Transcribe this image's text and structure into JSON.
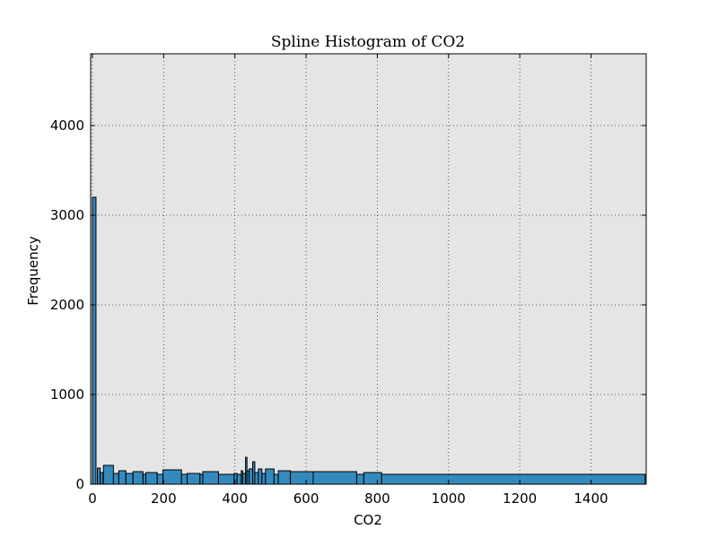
{
  "chart_data": {
    "type": "bar",
    "title": "Spline Histogram of CO2",
    "xlabel": "CO2",
    "ylabel": "Frequency",
    "xlim": [
      -5,
      1555
    ],
    "ylim": [
      0,
      4800
    ],
    "xticks": [
      0,
      200,
      400,
      600,
      800,
      1000,
      1200,
      1400
    ],
    "yticks": [
      0,
      1000,
      2000,
      3000,
      4000
    ],
    "grid": true,
    "colors": {
      "bar": "#348ABD",
      "background": "#E5E5E5",
      "edge": "#000000",
      "grid": "#333333"
    },
    "bins": [
      {
        "x0": 0,
        "x1": 10,
        "value": 3200
      },
      {
        "x0": 14,
        "x1": 22,
        "value": 180
      },
      {
        "x0": 22,
        "x1": 30,
        "value": 130
      },
      {
        "x0": 31,
        "x1": 59,
        "value": 210
      },
      {
        "x0": 59,
        "x1": 74,
        "value": 120
      },
      {
        "x0": 74,
        "x1": 94,
        "value": 150
      },
      {
        "x0": 94,
        "x1": 114,
        "value": 120
      },
      {
        "x0": 114,
        "x1": 142,
        "value": 140
      },
      {
        "x0": 142,
        "x1": 150,
        "value": 110
      },
      {
        "x0": 150,
        "x1": 182,
        "value": 130
      },
      {
        "x0": 182,
        "x1": 198,
        "value": 110
      },
      {
        "x0": 198,
        "x1": 250,
        "value": 160
      },
      {
        "x0": 250,
        "x1": 266,
        "value": 110
      },
      {
        "x0": 266,
        "x1": 302,
        "value": 120
      },
      {
        "x0": 302,
        "x1": 310,
        "value": 110
      },
      {
        "x0": 310,
        "x1": 354,
        "value": 140
      },
      {
        "x0": 354,
        "x1": 398,
        "value": 110
      },
      {
        "x0": 398,
        "x1": 406,
        "value": 120
      },
      {
        "x0": 406,
        "x1": 418,
        "value": 110
      },
      {
        "x0": 418,
        "x1": 422,
        "value": 150
      },
      {
        "x0": 422,
        "x1": 430,
        "value": 120
      },
      {
        "x0": 430,
        "x1": 434,
        "value": 300
      },
      {
        "x0": 434,
        "x1": 440,
        "value": 150
      },
      {
        "x0": 440,
        "x1": 450,
        "value": 170
      },
      {
        "x0": 450,
        "x1": 456,
        "value": 250
      },
      {
        "x0": 456,
        "x1": 466,
        "value": 130
      },
      {
        "x0": 466,
        "x1": 476,
        "value": 170
      },
      {
        "x0": 476,
        "x1": 486,
        "value": 120
      },
      {
        "x0": 486,
        "x1": 510,
        "value": 170
      },
      {
        "x0": 510,
        "x1": 522,
        "value": 110
      },
      {
        "x0": 522,
        "x1": 556,
        "value": 150
      },
      {
        "x0": 556,
        "x1": 620,
        "value": 140
      },
      {
        "x0": 620,
        "x1": 742,
        "value": 140
      },
      {
        "x0": 742,
        "x1": 762,
        "value": 110
      },
      {
        "x0": 762,
        "x1": 812,
        "value": 130
      },
      {
        "x0": 812,
        "x1": 1552,
        "value": 110
      }
    ]
  }
}
